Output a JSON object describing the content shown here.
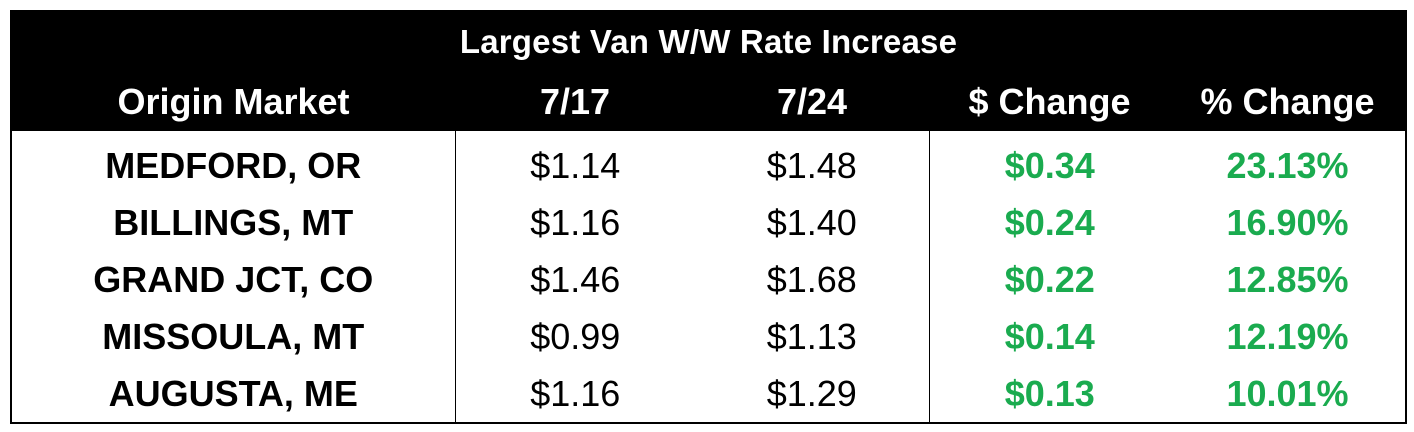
{
  "chart_data": {
    "type": "table",
    "title": "Largest Van W/W Rate Increase",
    "columns": [
      "Origin Market",
      "7/17",
      "7/24",
      "$ Change",
      "% Change"
    ],
    "rows": [
      [
        "MEDFORD, OR",
        "$1.14",
        "$1.48",
        "$0.34",
        "23.13%"
      ],
      [
        "BILLINGS, MT",
        "$1.16",
        "$1.40",
        "$0.24",
        "16.90%"
      ],
      [
        "GRAND JCT, CO",
        "$1.46",
        "$1.68",
        "$0.22",
        "12.85%"
      ],
      [
        "MISSOULA, MT",
        "$0.99",
        "$1.13",
        "$0.14",
        "12.19%"
      ],
      [
        "AUGUSTA, ME",
        "$1.16",
        "$1.29",
        "$0.13",
        "10.01%"
      ]
    ]
  },
  "colors": {
    "header_bg": "#000000",
    "header_text": "#ffffff",
    "change_text": "#1aab4f"
  }
}
